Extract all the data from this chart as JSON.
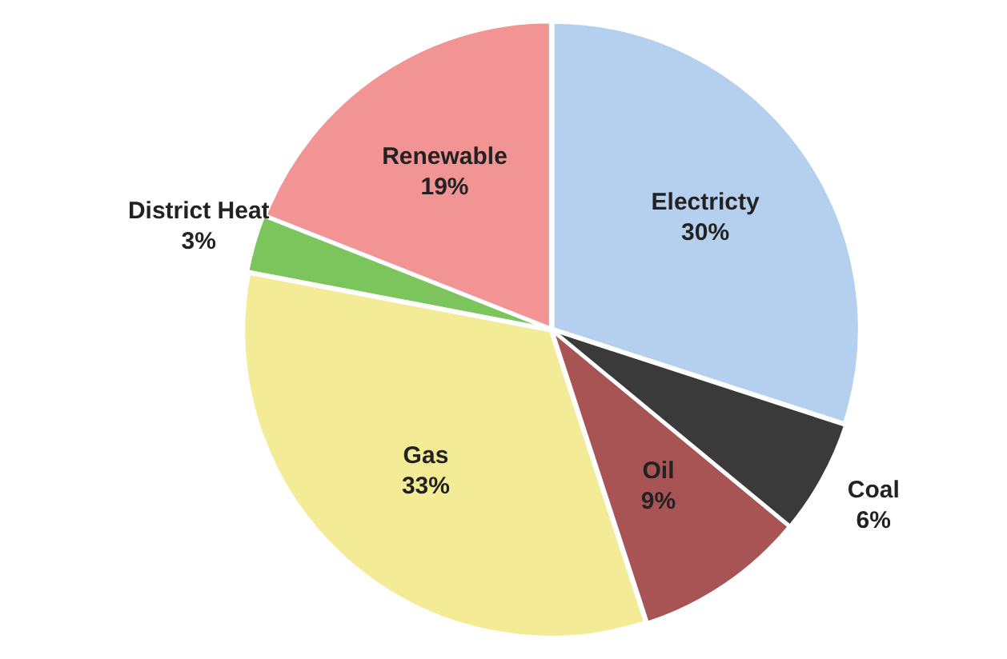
{
  "chart_data": {
    "type": "pie",
    "categories": [
      "Electricty",
      "Coal",
      "Oil",
      "Gas",
      "District Heat",
      "Renewable"
    ],
    "values": [
      30,
      6,
      9,
      33,
      3,
      19
    ],
    "value_labels": [
      "30%",
      "6%",
      "9%",
      "33%",
      "3%",
      "19%"
    ],
    "colors": [
      "#b4d0ee",
      "#3a3a3a",
      "#a85454",
      "#f4eb96",
      "#7cc45c",
      "#f29494"
    ],
    "legend": false
  }
}
